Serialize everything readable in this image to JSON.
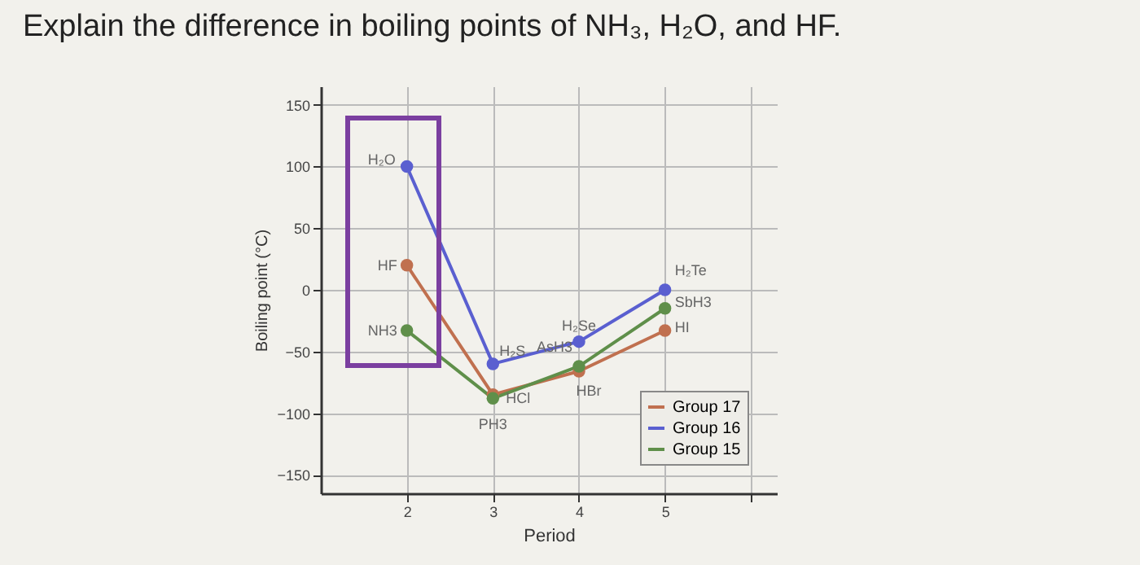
{
  "chart_data": {
    "type": "line",
    "title": "Explain the difference in boiling points of NH₃, H₂O, and HF.",
    "xlabel": "Period",
    "ylabel": "Boiling point (°C)",
    "x": [
      2,
      3,
      4,
      5
    ],
    "series": [
      {
        "name": "Group 17",
        "color": "#c0704f",
        "values": [
          20,
          -85,
          -66,
          -33
        ]
      },
      {
        "name": "Group 16",
        "color": "#5a5fd0",
        "values": [
          100,
          -60,
          -42,
          0
        ]
      },
      {
        "name": "Group 15",
        "color": "#5f8f4a",
        "values": [
          -33,
          -88,
          -62,
          -15
        ]
      }
    ],
    "annotations": [
      {
        "text": "H₂O",
        "x": 2,
        "y": 100
      },
      {
        "text": "HF",
        "x": 2,
        "y": 20
      },
      {
        "text": "NH3",
        "x": 2,
        "y": -33
      },
      {
        "text": "H₂S",
        "x": 3,
        "y": -60
      },
      {
        "text": "HCl",
        "x": 3,
        "y": -85
      },
      {
        "text": "PH3",
        "x": 3,
        "y": -88
      },
      {
        "text": "H₂Se",
        "x": 4,
        "y": -42
      },
      {
        "text": "AsH3",
        "x": 4,
        "y": -62
      },
      {
        "text": "HBr",
        "x": 4,
        "y": -66
      },
      {
        "text": "H₂Te",
        "x": 5,
        "y": 0
      },
      {
        "text": "SbH3",
        "x": 5,
        "y": -15
      },
      {
        "text": "HI",
        "x": 5,
        "y": -33
      }
    ],
    "xlim": [
      1,
      6.3
    ],
    "xticks": [
      2,
      3,
      4,
      5,
      {
        "value": 6,
        "label": null
      }
    ],
    "ylim": [
      -165,
      165
    ],
    "yticks": [
      -150,
      -100,
      -50,
      0,
      50,
      100,
      150
    ],
    "grid": true,
    "legend": "bottom right",
    "marker": "circle",
    "line_style": "solid"
  }
}
